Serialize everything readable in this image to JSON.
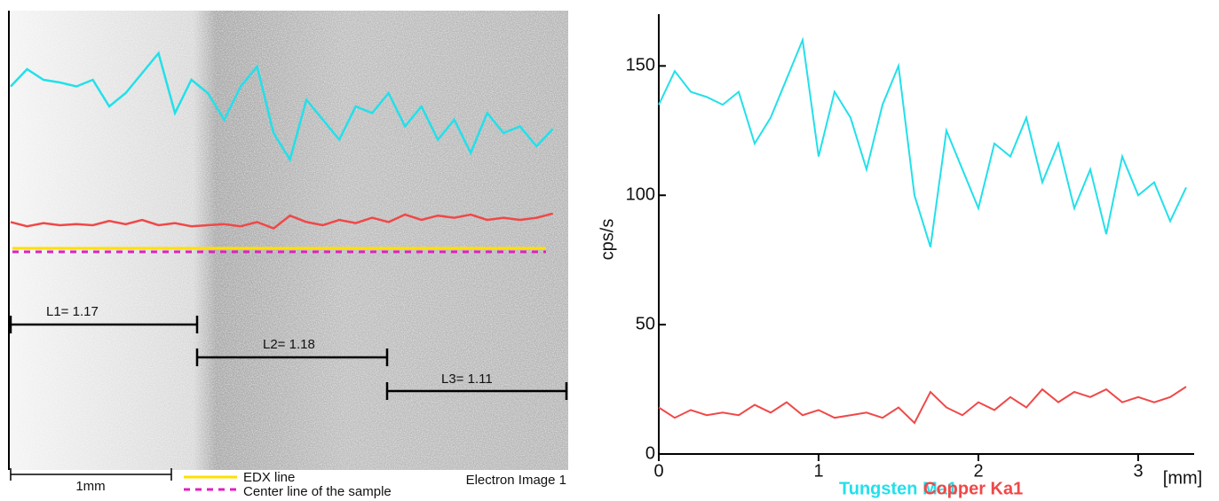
{
  "image": {
    "measurements": [
      "L1= 1.17",
      "L2= 1.18",
      "L3= 1.11"
    ],
    "scale_bar": "1mm",
    "legend": [
      "EDX line",
      "Center line of the sample"
    ],
    "caption": "Electron Image 1"
  },
  "chart_data": {
    "type": "line",
    "ylabel": "cps/s",
    "xlabel": "[mm]",
    "x": [
      0,
      0.1,
      0.2,
      0.3,
      0.4,
      0.5,
      0.6,
      0.7,
      0.8,
      0.9,
      1.0,
      1.1,
      1.2,
      1.3,
      1.4,
      1.5,
      1.6,
      1.7,
      1.8,
      1.9,
      2.0,
      2.1,
      2.2,
      2.3,
      2.4,
      2.5,
      2.6,
      2.7,
      2.8,
      2.9,
      3.0,
      3.1,
      3.2,
      3.3
    ],
    "series": [
      {
        "name": "Tungsten Ma1",
        "color": "#22e0ea",
        "values": [
          135,
          148,
          140,
          138,
          135,
          140,
          120,
          130,
          145,
          160,
          115,
          140,
          130,
          110,
          135,
          150,
          100,
          80,
          125,
          110,
          95,
          120,
          115,
          130,
          105,
          120,
          95,
          110,
          85,
          115,
          100,
          105,
          90,
          103
        ]
      },
      {
        "name": "Copper Ka1",
        "color": "#f04848",
        "values": [
          18,
          14,
          17,
          15,
          16,
          15,
          19,
          16,
          20,
          15,
          17,
          14,
          15,
          16,
          14,
          18,
          12,
          24,
          18,
          15,
          20,
          17,
          22,
          18,
          25,
          20,
          24,
          22,
          25,
          20,
          22,
          20,
          22,
          26
        ]
      }
    ],
    "xlim": [
      0,
      3.35
    ],
    "ylim": [
      0,
      170
    ],
    "xticks": [
      0,
      1,
      2,
      3
    ],
    "yticks": [
      0,
      50,
      100,
      150
    ]
  }
}
